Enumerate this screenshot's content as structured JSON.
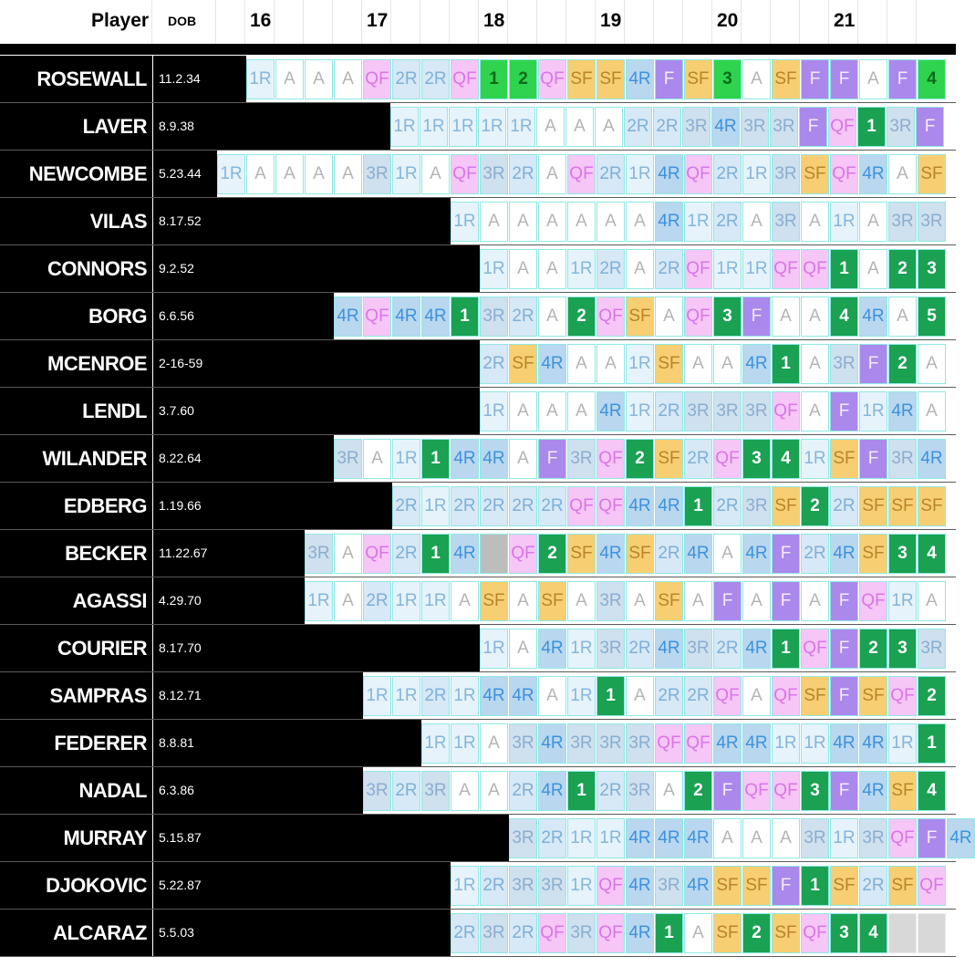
{
  "header": {
    "player_label": "Player",
    "dob_label": "DOB",
    "ages": [
      "16",
      "17",
      "18",
      "19",
      "20",
      "21"
    ]
  },
  "legend_colors": {
    "title": "#ab88ec",
    "semifinal": "#f7cf72",
    "quarterfinal": "#f6c6f6",
    "fourth_round": "#b9d7ef"
  },
  "players": [
    {
      "name": "ROSEWALL",
      "dob": "11.2.34",
      "cells": [
        "1R",
        "A",
        "A",
        "A",
        "QF",
        "2R",
        "2R",
        "QF",
        "1",
        "2",
        "QF",
        "SF",
        "SF",
        "4R",
        "F",
        "SF",
        "3",
        "A",
        "SF",
        "F",
        "F",
        "A",
        "F",
        "4"
      ]
    },
    {
      "name": "LAVER",
      "dob": "8.9.38",
      "cells": [
        "1R",
        "1R",
        "1R",
        "1R",
        "1R",
        "A",
        "A",
        "A",
        "2R",
        "2R",
        "3R",
        "4R",
        "3R",
        "3R",
        "F",
        "QF",
        "1",
        "3R",
        "F"
      ]
    },
    {
      "name": "NEWCOMBE",
      "dob": "5.23.44",
      "cells": [
        "1R",
        "A",
        "A",
        "A",
        "A",
        "3R",
        "1R",
        "A",
        "QF",
        "3R",
        "2R",
        "A",
        "QF",
        "2R",
        "1R",
        "4R",
        "QF",
        "2R",
        "1R",
        "3R",
        "SF",
        "QF",
        "4R",
        "A",
        "SF"
      ]
    },
    {
      "name": "VILAS",
      "dob": "8.17.52",
      "cells": [
        "1R",
        "A",
        "A",
        "A",
        "A",
        "A",
        "A",
        "4R",
        "1R",
        "2R",
        "A",
        "3R",
        "A",
        "1R",
        "A",
        "3R",
        "3R"
      ]
    },
    {
      "name": "CONNORS",
      "dob": "9.2.52",
      "cells": [
        "1R",
        "A",
        "A",
        "1R",
        "2R",
        "A",
        "2R",
        "QF",
        "1R",
        "1R",
        "QF",
        "QF",
        "1",
        "A",
        "2",
        "3"
      ]
    },
    {
      "name": "BORG",
      "dob": "6.6.56",
      "cells": [
        "4R",
        "QF",
        "4R",
        "4R",
        "1",
        "3R",
        "2R",
        "A",
        "2",
        "QF",
        "SF",
        "A",
        "QF",
        "3",
        "F",
        "A",
        "A",
        "4",
        "4R",
        "A",
        "5"
      ]
    },
    {
      "name": "MCENROE",
      "dob": "2-16-59",
      "cells": [
        "2R",
        "SF",
        "4R",
        "A",
        "A",
        "1R",
        "SF",
        "A",
        "A",
        "4R",
        "1",
        "A",
        "3R",
        "F",
        "2",
        "A"
      ]
    },
    {
      "name": "LENDL",
      "dob": "3.7.60",
      "cells": [
        "1R",
        "A",
        "A",
        "A",
        "4R",
        "1R",
        "2R",
        "3R",
        "3R",
        "3R",
        "QF",
        "A",
        "F",
        "1R",
        "4R",
        "A"
      ]
    },
    {
      "name": "WILANDER",
      "dob": "8.22.64",
      "cells": [
        "3R",
        "A",
        "1R",
        "1",
        "4R",
        "4R",
        "A",
        "F",
        "3R",
        "QF",
        "2",
        "SF",
        "2R",
        "QF",
        "3",
        "4",
        "1R",
        "SF",
        "F",
        "3R",
        "4R"
      ]
    },
    {
      "name": "EDBERG",
      "dob": "1.19.66",
      "cells": [
        "2R",
        "1R",
        "2R",
        "2R",
        "2R",
        "2R",
        "QF",
        "QF",
        "4R",
        "4R",
        "1",
        "2R",
        "3R",
        "SF",
        "2",
        "2R",
        "SF",
        "SF",
        "SF"
      ]
    },
    {
      "name": "BECKER",
      "dob": "11.22.67",
      "cells": [
        "3R",
        "A",
        "QF",
        "2R",
        "1",
        "4R",
        "X",
        "QF",
        "2",
        "SF",
        "4R",
        "SF",
        "2R",
        "4R",
        "A",
        "4R",
        "F",
        "2R",
        "4R",
        "SF",
        "3",
        "4"
      ]
    },
    {
      "name": "AGASSI",
      "dob": "4.29.70",
      "cells": [
        "1R",
        "A",
        "2R",
        "1R",
        "1R",
        "A",
        "SF",
        "A",
        "SF",
        "A",
        "3R",
        "A",
        "SF",
        "A",
        "F",
        "A",
        "F",
        "A",
        "F",
        "QF",
        "1R",
        "A"
      ]
    },
    {
      "name": "COURIER",
      "dob": "8.17.70",
      "cells": [
        "1R",
        "A",
        "4R",
        "1R",
        "3R",
        "2R",
        "4R",
        "3R",
        "2R",
        "4R",
        "1",
        "QF",
        "F",
        "2",
        "3",
        "3R"
      ]
    },
    {
      "name": "SAMPRAS",
      "dob": "8.12.71",
      "cells": [
        "1R",
        "1R",
        "2R",
        "1R",
        "4R",
        "4R",
        "A",
        "1R",
        "1",
        "A",
        "2R",
        "2R",
        "QF",
        "A",
        "QF",
        "SF",
        "F",
        "SF",
        "QF",
        "2"
      ]
    },
    {
      "name": "FEDERER",
      "dob": "8.8.81",
      "cells": [
        "1R",
        "1R",
        "A",
        "3R",
        "4R",
        "3R",
        "3R",
        "3R",
        "QF",
        "QF",
        "4R",
        "4R",
        "1R",
        "1R",
        "4R",
        "4R",
        "1R",
        "1"
      ]
    },
    {
      "name": "NADAL",
      "dob": "6.3.86",
      "cells": [
        "3R",
        "2R",
        "3R",
        "A",
        "A",
        "2R",
        "4R",
        "1",
        "2R",
        "3R",
        "A",
        "2",
        "F",
        "QF",
        "QF",
        "3",
        "F",
        "4R",
        "SF",
        "4"
      ]
    },
    {
      "name": "MURRAY",
      "dob": "5.15.87",
      "cells": [
        "3R",
        "2R",
        "1R",
        "1R",
        "4R",
        "4R",
        "4R",
        "A",
        "A",
        "A",
        "3R",
        "1R",
        "3R",
        "QF",
        "F",
        "4R"
      ]
    },
    {
      "name": "DJOKOVIC",
      "dob": "5.22.87",
      "cells": [
        "1R",
        "2R",
        "3R",
        "3R",
        "1R",
        "QF",
        "4R",
        "3R",
        "4R",
        "SF",
        "SF",
        "F",
        "1",
        "SF",
        "2R",
        "SF",
        "QF"
      ]
    },
    {
      "name": "ALCARAZ",
      "dob": "5.5.03",
      "cells": [
        "2R",
        "3R",
        "2R",
        "QF",
        "3R",
        "QF",
        "4R",
        "1",
        "A",
        "SF",
        "2",
        "SF",
        "QF",
        "3",
        "4",
        "G",
        "G"
      ]
    }
  ]
}
